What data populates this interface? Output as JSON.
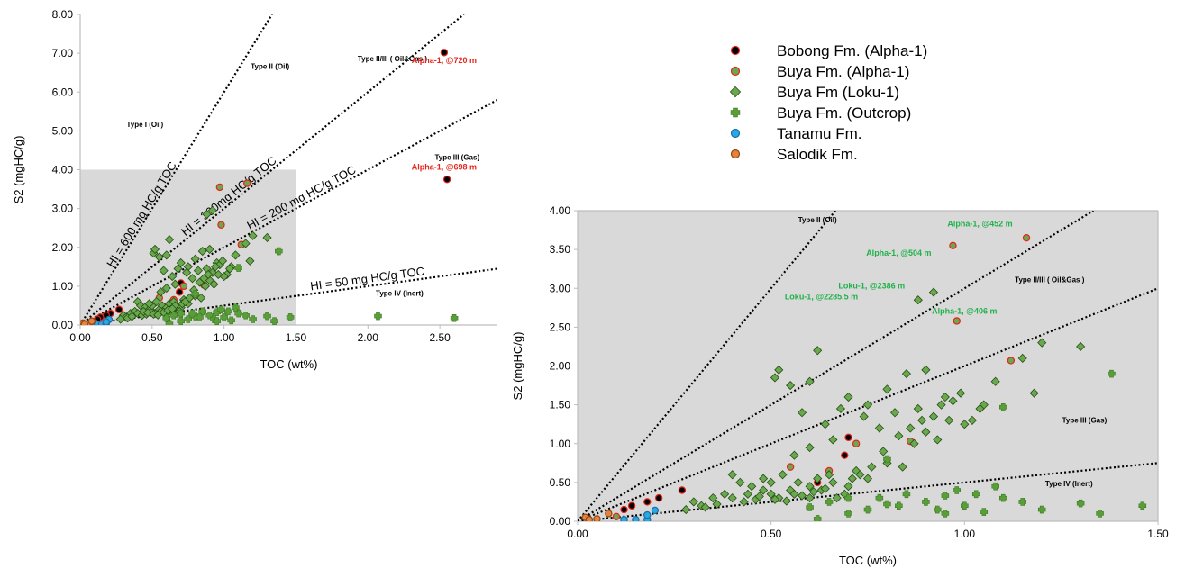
{
  "chart_data": [
    {
      "id": "main",
      "type": "scatter",
      "xlabel": "TOC (wt%)",
      "ylabel": "S2 (mgHC/g)",
      "xlim": [
        0,
        2.9
      ],
      "ylim": [
        0,
        8
      ],
      "xticks": [
        "0.00",
        "0.50",
        "1.00",
        "1.50",
        "2.00",
        "2.50"
      ],
      "yticks": [
        "0.00",
        "1.00",
        "2.00",
        "3.00",
        "4.00",
        "5.00",
        "6.00",
        "7.00",
        "8.00"
      ],
      "zoom_box": {
        "x": [
          0,
          1.5
        ],
        "y": [
          0,
          4
        ]
      },
      "hi_lines": [
        {
          "label": "HI = 600 mg HC/g TOC",
          "slope": 6
        },
        {
          "label": "HI = 300mg HC/g TOC",
          "slope": 3
        },
        {
          "label": "HI = 200 mg HC/g TOC",
          "slope": 2
        },
        {
          "label": "HI = 50 mg HC/g TOC",
          "slope": 0.5
        }
      ],
      "regions": [
        {
          "label": "Type I (Oil)",
          "x": 0.45,
          "y": 5.1
        },
        {
          "label": "Type II (Oil)",
          "x": 1.32,
          "y": 6.6
        },
        {
          "label": "Type II/III (   Oil&Gas   )",
          "x": 2.17,
          "y": 6.8
        },
        {
          "label": "Type III (Gas)",
          "x": 2.62,
          "y": 4.25
        },
        {
          "label": "Type IV (Inert)",
          "x": 2.22,
          "y": 0.75
        }
      ],
      "annotations": [
        {
          "text": "Alpha-1, @720 m",
          "x": 2.53,
          "y": 6.75,
          "color": "red"
        },
        {
          "text": "Alpha-1, @698 m",
          "x": 2.53,
          "y": 4.0,
          "color": "red"
        }
      ],
      "series": [
        {
          "key": "bobong",
          "points": [
            [
              2.53,
              7.02
            ],
            [
              2.55,
              3.75
            ],
            [
              0.27,
              0.4
            ],
            [
              0.21,
              0.3
            ],
            [
              0.18,
              0.25
            ],
            [
              0.14,
              0.2
            ],
            [
              0.12,
              0.15
            ],
            [
              0.69,
              0.85
            ],
            [
              0.7,
              1.08
            ],
            [
              0.62,
              0.5
            ]
          ]
        },
        {
          "key": "buya_alpha",
          "points": [
            [
              0.97,
              3.55
            ],
            [
              1.16,
              3.65
            ],
            [
              0.98,
              2.58
            ],
            [
              1.12,
              2.07
            ],
            [
              0.55,
              0.7
            ],
            [
              0.65,
              0.65
            ],
            [
              0.72,
              1.0
            ],
            [
              0.86,
              1.03
            ],
            [
              0.1,
              0.06
            ]
          ]
        },
        {
          "key": "buya_loku",
          "points": [
            [
              0.62,
              2.2
            ],
            [
              0.88,
              2.85
            ],
            [
              0.92,
              2.95
            ],
            [
              0.51,
              1.85
            ],
            [
              0.52,
              1.95
            ],
            [
              0.55,
              1.75
            ],
            [
              0.6,
              1.8
            ],
            [
              0.7,
              1.6
            ],
            [
              0.75,
              1.5
            ],
            [
              0.8,
              1.7
            ],
            [
              0.85,
              1.9
            ],
            [
              0.9,
              1.95
            ],
            [
              0.95,
              1.6
            ],
            [
              1.02,
              1.3
            ],
            [
              1.05,
              1.5
            ],
            [
              1.08,
              1.8
            ],
            [
              1.15,
              2.1
            ],
            [
              1.2,
              2.3
            ],
            [
              1.3,
              2.25
            ],
            [
              1.18,
              1.65
            ],
            [
              0.58,
              1.4
            ],
            [
              0.64,
              1.25
            ],
            [
              0.68,
              1.45
            ],
            [
              0.74,
              1.35
            ],
            [
              0.78,
              1.2
            ],
            [
              0.82,
              1.4
            ],
            [
              0.88,
              1.45
            ],
            [
              0.92,
              1.35
            ],
            [
              0.97,
              1.55
            ],
            [
              1.0,
              1.25
            ],
            [
              0.4,
              0.6
            ],
            [
              0.42,
              0.5
            ],
            [
              0.45,
              0.45
            ],
            [
              0.48,
              0.4
            ],
            [
              0.5,
              0.35
            ],
            [
              0.52,
              0.3
            ],
            [
              0.55,
              0.4
            ],
            [
              0.57,
              0.5
            ],
            [
              0.6,
              0.45
            ],
            [
              0.62,
              0.55
            ],
            [
              0.65,
              0.6
            ],
            [
              0.3,
              0.25
            ],
            [
              0.32,
              0.2
            ],
            [
              0.35,
              0.3
            ],
            [
              0.38,
              0.35
            ],
            [
              0.4,
              0.3
            ],
            [
              0.43,
              0.25
            ],
            [
              0.46,
              0.28
            ],
            [
              0.5,
              0.5
            ],
            [
              0.53,
              0.6
            ],
            [
              0.56,
              0.35
            ],
            [
              0.6,
              0.3
            ],
            [
              0.63,
              0.4
            ],
            [
              0.66,
              0.5
            ],
            [
              0.7,
              0.45
            ],
            [
              0.72,
              0.65
            ],
            [
              0.75,
              0.55
            ],
            [
              0.8,
              0.75
            ],
            [
              0.84,
              0.7
            ],
            [
              0.87,
              1.0
            ],
            [
              0.9,
              1.15
            ],
            [
              0.93,
              1.05
            ],
            [
              0.96,
              1.3
            ],
            [
              0.28,
              0.15
            ],
            [
              0.33,
              0.18
            ],
            [
              0.36,
              0.22
            ],
            [
              0.44,
              0.35
            ],
            [
              0.47,
              0.32
            ],
            [
              0.51,
              0.28
            ],
            [
              0.54,
              0.26
            ],
            [
              0.58,
              0.33
            ],
            [
              0.61,
              0.38
            ],
            [
              0.64,
              0.42
            ],
            [
              0.67,
              0.3
            ],
            [
              0.69,
              0.35
            ],
            [
              0.71,
              0.55
            ],
            [
              0.73,
              0.6
            ],
            [
              0.76,
              0.7
            ],
            [
              0.79,
              0.9
            ],
            [
              0.83,
              1.1
            ],
            [
              0.86,
              1.2
            ],
            [
              0.89,
              1.3
            ],
            [
              0.94,
              1.5
            ],
            [
              0.99,
              1.65
            ],
            [
              1.04,
              1.45
            ],
            [
              0.66,
              1.05
            ],
            [
              0.6,
              0.95
            ],
            [
              0.56,
              0.85
            ],
            [
              0.48,
              0.55
            ]
          ]
        },
        {
          "key": "buya_outcrop",
          "points": [
            [
              0.6,
              0.18
            ],
            [
              0.65,
              0.25
            ],
            [
              0.7,
              0.3
            ],
            [
              0.75,
              0.15
            ],
            [
              0.8,
              0.22
            ],
            [
              0.85,
              0.35
            ],
            [
              0.9,
              0.25
            ],
            [
              0.95,
              0.33
            ],
            [
              1.0,
              0.2
            ],
            [
              1.05,
              0.12
            ],
            [
              1.1,
              0.3
            ],
            [
              1.15,
              0.25
            ],
            [
              1.2,
              0.15
            ],
            [
              1.3,
              0.23
            ],
            [
              1.35,
              0.1
            ],
            [
              1.38,
              1.9
            ],
            [
              1.46,
              0.2
            ],
            [
              2.07,
              0.23
            ],
            [
              2.6,
              0.18
            ],
            [
              0.7,
              0.1
            ],
            [
              0.62,
              0.03
            ],
            [
              0.78,
              0.3
            ],
            [
              0.83,
              0.2
            ],
            [
              0.93,
              0.15
            ],
            [
              0.98,
              0.4
            ],
            [
              1.03,
              0.35
            ],
            [
              1.08,
              0.45
            ],
            [
              1.1,
              1.47
            ],
            [
              0.8,
              0.8
            ],
            [
              0.95,
              0.1
            ]
          ]
        },
        {
          "key": "tanamu",
          "points": [
            [
              0.12,
              0.02
            ],
            [
              0.15,
              0.02
            ],
            [
              0.18,
              0.02
            ],
            [
              0.2,
              0.14
            ],
            [
              0.18,
              0.08
            ]
          ]
        },
        {
          "key": "salodik",
          "points": [
            [
              0.02,
              0.05
            ],
            [
              0.05,
              0.03
            ],
            [
              0.08,
              0.1
            ],
            [
              0.03,
              0.02
            ]
          ]
        }
      ]
    },
    {
      "id": "zoom",
      "type": "scatter",
      "xlabel": "TOC (wt%)",
      "ylabel": "S2 (mgHC/g)",
      "xlim": [
        0,
        1.5
      ],
      "ylim": [
        0,
        4
      ],
      "xticks": [
        "0.00",
        "0.50",
        "1.00",
        "1.50"
      ],
      "yticks": [
        "0.00",
        "0.50",
        "1.00",
        "1.50",
        "2.00",
        "2.50",
        "3.00",
        "3.50",
        "4.00"
      ],
      "regions": [
        {
          "label": "Type II (Oil)",
          "x": 0.62,
          "y": 3.85
        },
        {
          "label": "Type II/III (   Oil&Gas   )",
          "x": 1.22,
          "y": 3.08
        },
        {
          "label": "Type III (Gas)",
          "x": 1.31,
          "y": 1.27
        },
        {
          "label": "Type IV (Inert)",
          "x": 1.27,
          "y": 0.45
        }
      ],
      "annotations": [
        {
          "text": "Alpha-1, @452 m",
          "x": 1.04,
          "y": 3.8,
          "color": "green"
        },
        {
          "text": "Alpha-1, @504 m",
          "x": 0.83,
          "y": 3.42,
          "color": "green"
        },
        {
          "text": "Loku-1, @2386 m",
          "x": 0.76,
          "y": 3.0,
          "color": "green"
        },
        {
          "text": "Loku-1, @2285.5 m",
          "x": 0.63,
          "y": 2.86,
          "color": "green"
        },
        {
          "text": "Alpha-1, @406 m",
          "x": 1.0,
          "y": 2.67,
          "color": "green"
        }
      ]
    }
  ],
  "legend": [
    {
      "key": "bobong",
      "label": "Bobong Fm. (Alpha-1)",
      "marker": "circle",
      "fill": "#000000",
      "stroke": "#e8231a"
    },
    {
      "key": "buya_alpha",
      "label": "Buya Fm. (Alpha-1)",
      "marker": "circle",
      "fill": "#6aa84f",
      "stroke": "#e8231a"
    },
    {
      "key": "buya_loku",
      "label": "Buya Fm (Loku-1)",
      "marker": "diamond",
      "fill": "#6aa84f",
      "stroke": "#274e13"
    },
    {
      "key": "buya_outcrop",
      "label": "Buya Fm. (Outcrop)",
      "marker": "plus",
      "fill": "#5a9e3a",
      "stroke": "#3d7a22"
    },
    {
      "key": "tanamu",
      "label": "Tanamu Fm.",
      "marker": "circle",
      "fill": "#2aa7e8",
      "stroke": "#1a6fa0"
    },
    {
      "key": "salodik",
      "label": "Salodik Fm.",
      "marker": "circle",
      "fill": "#e8823a",
      "stroke": "#8a4a1a"
    }
  ]
}
